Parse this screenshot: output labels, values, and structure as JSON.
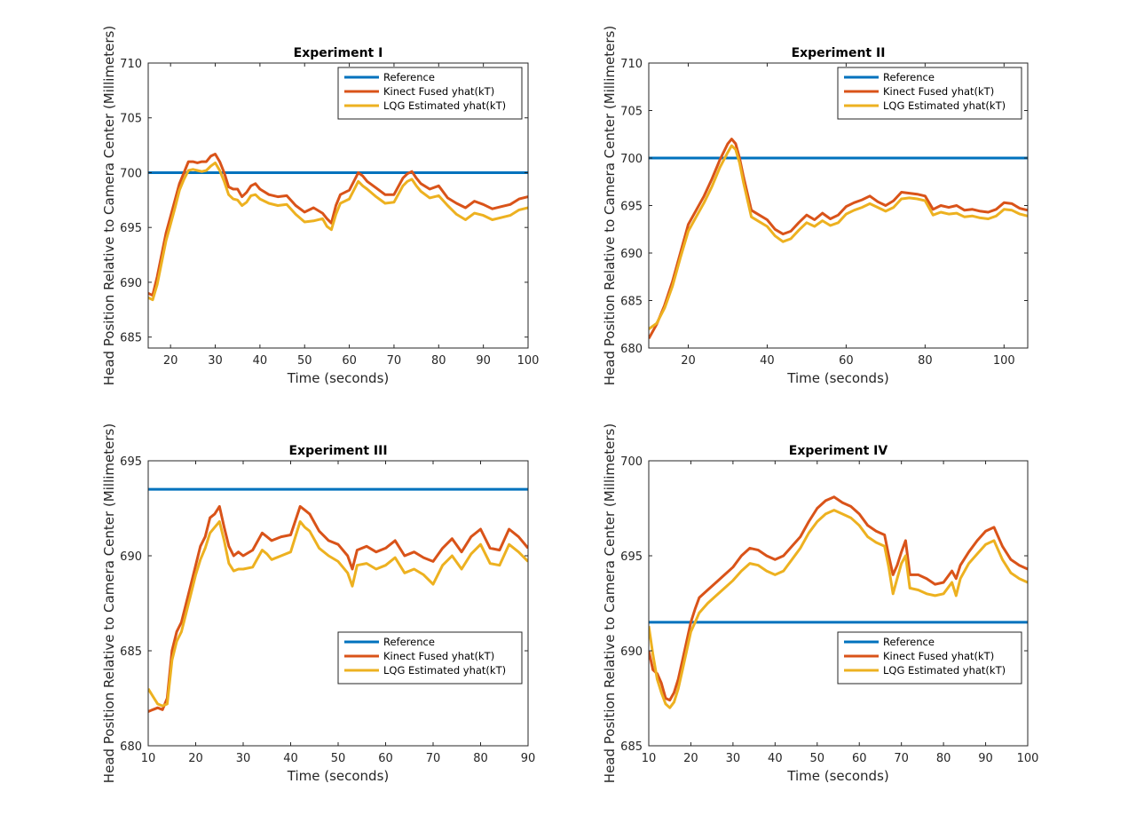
{
  "chart_data": [
    {
      "type": "line",
      "title": "Experiment I",
      "xlabel": "Time (seconds)",
      "ylabel": "Head Position Relative to Camera Center (Millimeters)",
      "xlim": [
        15,
        100
      ],
      "ylim": [
        684,
        710
      ],
      "xticks": [
        20,
        30,
        40,
        50,
        60,
        70,
        80,
        90,
        100
      ],
      "yticks": [
        685,
        690,
        695,
        700,
        705,
        710
      ],
      "legend_position": "top-right",
      "grid": false,
      "series": [
        {
          "name": "Reference",
          "color": "#0072BD",
          "x": [
            15,
            100
          ],
          "y": [
            700,
            700
          ]
        },
        {
          "name": "Kinect Fused yhat(kT)",
          "color": "#D95319",
          "x": [
            15,
            16,
            17,
            18,
            19,
            20,
            21,
            22,
            23,
            24,
            25,
            26,
            27,
            28,
            29,
            30,
            31,
            32,
            33,
            34,
            35,
            36,
            37,
            38,
            39,
            40,
            42,
            44,
            46,
            48,
            50,
            52,
            54,
            55,
            56,
            57,
            58,
            60,
            62,
            63,
            64,
            66,
            68,
            70,
            72,
            73,
            74,
            75,
            76,
            78,
            80,
            82,
            84,
            86,
            88,
            90,
            92,
            94,
            96,
            98,
            100
          ],
          "y": [
            689,
            688.8,
            690.5,
            692.5,
            694.5,
            696,
            697.5,
            699,
            700,
            701,
            701,
            700.9,
            701,
            701,
            701.5,
            701.7,
            701,
            700,
            698.7,
            698.5,
            698.5,
            697.8,
            698.2,
            698.8,
            699,
            698.5,
            698,
            697.8,
            697.9,
            697,
            696.4,
            696.8,
            696.3,
            695.8,
            695.4,
            697,
            698,
            698.4,
            700,
            699.7,
            699.2,
            698.6,
            698,
            698,
            699.5,
            699.9,
            700.1,
            699.5,
            699,
            698.5,
            698.8,
            697.7,
            697.2,
            696.8,
            697.4,
            697.1,
            696.7,
            696.9,
            697.1,
            697.6,
            697.8
          ]
        },
        {
          "name": "LQG Estimated yhat(kT)",
          "color": "#EDB120",
          "x": [
            15,
            16,
            17,
            18,
            19,
            20,
            21,
            22,
            23,
            24,
            25,
            26,
            27,
            28,
            29,
            30,
            31,
            32,
            33,
            34,
            35,
            36,
            37,
            38,
            39,
            40,
            42,
            44,
            46,
            48,
            50,
            52,
            54,
            55,
            56,
            57,
            58,
            60,
            62,
            63,
            64,
            66,
            68,
            70,
            72,
            73,
            74,
            75,
            76,
            78,
            80,
            82,
            84,
            86,
            88,
            90,
            92,
            94,
            96,
            98,
            100
          ],
          "y": [
            688.6,
            688.4,
            689.8,
            691.8,
            693.8,
            695.3,
            696.8,
            698.4,
            699.4,
            700.2,
            700.3,
            700.2,
            700.1,
            700.2,
            700.6,
            700.9,
            700.2,
            699.2,
            698,
            697.6,
            697.5,
            697,
            697.3,
            697.9,
            698,
            697.6,
            697.2,
            697,
            697.1,
            696.2,
            695.5,
            695.6,
            695.8,
            695.1,
            694.8,
            696.2,
            697.2,
            697.6,
            699.2,
            698.8,
            698.5,
            697.8,
            697.2,
            697.3,
            698.8,
            699.2,
            699.4,
            698.8,
            698.3,
            697.7,
            697.9,
            697,
            696.2,
            695.7,
            696.3,
            696.1,
            695.7,
            695.9,
            696.1,
            696.6,
            696.8
          ]
        }
      ]
    },
    {
      "type": "line",
      "title": "Experiment II",
      "xlabel": "Time (seconds)",
      "ylabel": "Head Position Relative to Camera Center (Millimeters)",
      "xlim": [
        10,
        106
      ],
      "ylim": [
        680,
        710
      ],
      "xticks": [
        20,
        40,
        60,
        80,
        100
      ],
      "yticks": [
        680,
        685,
        690,
        695,
        700,
        705,
        710
      ],
      "legend_position": "top-right",
      "grid": false,
      "series": [
        {
          "name": "Reference",
          "color": "#0072BD",
          "x": [
            10,
            106
          ],
          "y": [
            700,
            700
          ]
        },
        {
          "name": "Kinect Fused yhat(kT)",
          "color": "#D95319",
          "x": [
            10,
            12,
            14,
            16,
            18,
            20,
            22,
            24,
            26,
            28,
            30,
            31,
            32,
            33,
            34,
            36,
            38,
            40,
            42,
            44,
            46,
            48,
            50,
            52,
            54,
            56,
            58,
            60,
            62,
            64,
            66,
            68,
            70,
            72,
            74,
            76,
            78,
            80,
            82,
            84,
            86,
            88,
            90,
            92,
            94,
            96,
            98,
            100,
            102,
            104,
            106
          ],
          "y": [
            681,
            682.5,
            684.5,
            687,
            690,
            693,
            694.5,
            696,
            697.8,
            699.8,
            701.5,
            702,
            701.5,
            700,
            698,
            694.5,
            694,
            693.5,
            692.5,
            692,
            692.3,
            693.2,
            694,
            693.5,
            694.2,
            693.6,
            694,
            694.9,
            695.3,
            695.6,
            696,
            695.4,
            695,
            695.5,
            696.4,
            696.3,
            696.2,
            696,
            694.6,
            695,
            694.8,
            695,
            694.5,
            694.6,
            694.4,
            694.3,
            694.6,
            695.3,
            695.2,
            694.7,
            694.5
          ]
        },
        {
          "name": "LQG Estimated yhat(kT)",
          "color": "#EDB120",
          "x": [
            10,
            12,
            14,
            16,
            18,
            20,
            22,
            24,
            26,
            28,
            30,
            31,
            32,
            33,
            34,
            36,
            38,
            40,
            42,
            44,
            46,
            48,
            50,
            52,
            54,
            56,
            58,
            60,
            62,
            64,
            66,
            68,
            70,
            72,
            74,
            76,
            78,
            80,
            82,
            84,
            86,
            88,
            90,
            92,
            94,
            96,
            98,
            100,
            102,
            104,
            106
          ],
          "y": [
            682,
            682.6,
            684.2,
            686.5,
            689.5,
            692.3,
            693.8,
            695.3,
            697,
            699,
            700.6,
            701.3,
            700.9,
            699.5,
            697.4,
            693.8,
            693.3,
            692.8,
            691.8,
            691.2,
            691.5,
            692.4,
            693.2,
            692.8,
            693.4,
            692.9,
            693.2,
            694.1,
            694.5,
            694.8,
            695.2,
            694.8,
            694.4,
            694.8,
            695.7,
            695.8,
            695.7,
            695.5,
            694,
            694.3,
            694.1,
            694.2,
            693.8,
            693.9,
            693.7,
            693.6,
            693.9,
            694.6,
            694.5,
            694.1,
            693.9
          ]
        }
      ]
    },
    {
      "type": "line",
      "title": "Experiment III",
      "xlabel": "Time (seconds)",
      "ylabel": "Head Position Relative to Camera Center (Millimeters)",
      "xlim": [
        10,
        90
      ],
      "ylim": [
        680,
        695
      ],
      "xticks": [
        10,
        20,
        30,
        40,
        50,
        60,
        70,
        80,
        90
      ],
      "yticks": [
        680,
        685,
        690,
        695
      ],
      "legend_position": "bottom-right",
      "grid": false,
      "series": [
        {
          "name": "Reference",
          "color": "#0072BD",
          "x": [
            10,
            90
          ],
          "y": [
            693.5,
            693.5
          ]
        },
        {
          "name": "Kinect Fused yhat(kT)",
          "color": "#D95319",
          "x": [
            10,
            11,
            12,
            13,
            14,
            15,
            16,
            17,
            18,
            19,
            20,
            21,
            22,
            23,
            24,
            25,
            26,
            27,
            28,
            29,
            30,
            32,
            34,
            35,
            36,
            38,
            40,
            42,
            43,
            44,
            46,
            48,
            50,
            52,
            53,
            54,
            56,
            58,
            60,
            62,
            64,
            66,
            68,
            70,
            72,
            74,
            76,
            78,
            80,
            82,
            84,
            86,
            88,
            90
          ],
          "y": [
            681.8,
            681.9,
            682,
            681.9,
            682.5,
            685,
            686,
            686.5,
            687.5,
            688.5,
            689.5,
            690.5,
            691,
            692,
            692.2,
            692.6,
            691.5,
            690.5,
            690,
            690.2,
            690,
            690.3,
            691.2,
            691,
            690.8,
            691,
            691.1,
            692.6,
            692.4,
            692.2,
            691.3,
            690.8,
            690.6,
            690,
            689.3,
            690.3,
            690.5,
            690.2,
            690.4,
            690.8,
            690,
            690.2,
            689.9,
            689.7,
            690.4,
            690.9,
            690.2,
            691,
            691.4,
            690.4,
            690.3,
            691.4,
            691,
            690.4
          ]
        },
        {
          "name": "LQG Estimated yhat(kT)",
          "color": "#EDB120",
          "x": [
            10,
            11,
            12,
            13,
            14,
            15,
            16,
            17,
            18,
            19,
            20,
            21,
            22,
            23,
            24,
            25,
            26,
            27,
            28,
            29,
            30,
            32,
            34,
            35,
            36,
            38,
            40,
            42,
            43,
            44,
            46,
            48,
            50,
            52,
            53,
            54,
            56,
            58,
            60,
            62,
            64,
            66,
            68,
            70,
            72,
            74,
            76,
            78,
            80,
            82,
            84,
            86,
            88,
            90
          ],
          "y": [
            683,
            682.6,
            682.2,
            682.1,
            682.2,
            684.5,
            685.5,
            686,
            687,
            688,
            689,
            689.8,
            690.4,
            691.2,
            691.5,
            691.8,
            690.8,
            689.6,
            689.2,
            689.3,
            689.3,
            689.4,
            690.3,
            690.1,
            689.8,
            690,
            690.2,
            691.8,
            691.5,
            691.3,
            690.4,
            690,
            689.7,
            689.1,
            688.4,
            689.5,
            689.6,
            689.3,
            689.5,
            689.9,
            689.1,
            689.3,
            689,
            688.5,
            689.5,
            690,
            689.3,
            690.1,
            690.6,
            689.6,
            689.5,
            690.6,
            690.2,
            689.7
          ]
        }
      ]
    },
    {
      "type": "line",
      "title": "Experiment IV",
      "xlabel": "Time (seconds)",
      "ylabel": "Head Position Relative to Camera Center (Millimeters)",
      "xlim": [
        10,
        100
      ],
      "ylim": [
        685,
        700
      ],
      "xticks": [
        10,
        20,
        30,
        40,
        50,
        60,
        70,
        80,
        90,
        100
      ],
      "yticks": [
        685,
        690,
        695,
        700
      ],
      "legend_position": "bottom-right",
      "grid": false,
      "series": [
        {
          "name": "Reference",
          "color": "#0072BD",
          "x": [
            10,
            100
          ],
          "y": [
            691.5,
            691.5
          ]
        },
        {
          "name": "Kinect Fused yhat(kT)",
          "color": "#D95319",
          "x": [
            10,
            11,
            12,
            13,
            14,
            15,
            16,
            17,
            18,
            19,
            20,
            21,
            22,
            24,
            26,
            28,
            30,
            32,
            34,
            36,
            38,
            40,
            42,
            44,
            46,
            48,
            50,
            52,
            54,
            56,
            58,
            60,
            62,
            64,
            66,
            67,
            68,
            69,
            70,
            71,
            72,
            74,
            76,
            78,
            80,
            82,
            83,
            84,
            86,
            88,
            90,
            92,
            94,
            96,
            98,
            100
          ],
          "y": [
            690,
            689,
            688.8,
            688.3,
            687.5,
            687.4,
            687.8,
            688.5,
            689.5,
            690.5,
            691.5,
            692.2,
            692.8,
            693.2,
            693.6,
            694,
            694.4,
            695,
            695.4,
            695.3,
            695,
            694.8,
            695,
            695.5,
            696,
            696.8,
            697.5,
            697.9,
            698.1,
            697.8,
            697.6,
            697.2,
            696.6,
            696.3,
            696.1,
            695,
            694,
            694.5,
            695.2,
            695.8,
            694,
            694,
            693.8,
            693.5,
            693.6,
            694.2,
            693.8,
            694.5,
            695.2,
            695.8,
            696.3,
            696.5,
            695.5,
            694.8,
            694.5,
            694.3
          ]
        },
        {
          "name": "LQG Estimated yhat(kT)",
          "color": "#EDB120",
          "x": [
            10,
            11,
            12,
            13,
            14,
            15,
            16,
            17,
            18,
            19,
            20,
            21,
            22,
            24,
            26,
            28,
            30,
            32,
            34,
            36,
            38,
            40,
            42,
            44,
            46,
            48,
            50,
            52,
            54,
            56,
            58,
            60,
            62,
            64,
            66,
            67,
            68,
            69,
            70,
            71,
            72,
            74,
            76,
            78,
            80,
            82,
            83,
            84,
            86,
            88,
            90,
            92,
            94,
            96,
            98,
            100
          ],
          "y": [
            691.3,
            689.8,
            688.5,
            687.8,
            687.2,
            687,
            687.3,
            688,
            689,
            690,
            691,
            691.5,
            692,
            692.5,
            692.9,
            693.3,
            693.7,
            694.2,
            694.6,
            694.5,
            694.2,
            694,
            694.2,
            694.8,
            695.4,
            696.2,
            696.8,
            697.2,
            697.4,
            697.2,
            697,
            696.6,
            696,
            695.7,
            695.5,
            694.4,
            693,
            693.8,
            694.6,
            695,
            693.3,
            693.2,
            693,
            692.9,
            693,
            693.6,
            692.9,
            693.8,
            694.6,
            695.1,
            695.6,
            695.8,
            694.8,
            694.1,
            693.8,
            693.6
          ]
        }
      ]
    }
  ]
}
